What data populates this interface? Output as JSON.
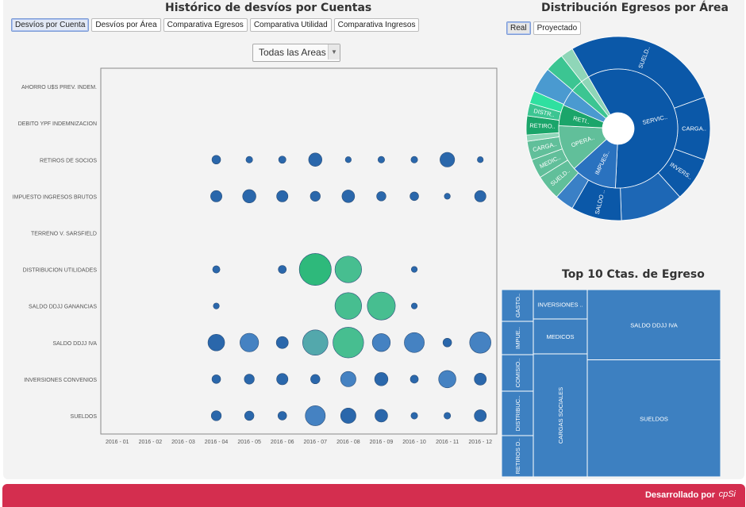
{
  "left_title": "Histórico de desvíos por Cuentas",
  "left_tabs": [
    "Desvíos por Cuenta",
    "Desvíos por Área",
    "Comparativa Egresos",
    "Comparativa Utilidad",
    "Comparativa Ingresos"
  ],
  "area_select": {
    "value": "Todas las Areas"
  },
  "right_title": "Distribución Egresos por Área",
  "right_tabs": [
    "Real",
    "Proyectado"
  ],
  "treemap_title": "Top 10 Ctas. de Egreso",
  "footer": {
    "text": "Desarrollado por",
    "logo": "cpSi"
  },
  "colors": {
    "blue": "#1f5fa6",
    "steel": "#3b7bbf",
    "green": "#23b574",
    "mid_green": "#3dbb8a",
    "teal": "#4aa3a8",
    "footer": "#d42e4f"
  },
  "chart_data": {
    "type": "scatter",
    "title": "Histórico de desvíos por Cuentas",
    "categories": [
      "AHORRO U$S PREV. INDEM.",
      "DEBITO YPF INDEMNIZACION",
      "RETIROS DE SOCIOS",
      "IMPUESTO INGRESOS BRUTOS",
      "TERRENO V. SARSFIELD",
      "DISTRIBUCION UTILIDADES",
      "SALDO DDJJ GANANCIAS",
      "SALDO DDJJ IVA",
      "INVERSIONES CONVENIOS",
      "SUELDOS"
    ],
    "x": [
      "2016 - 01",
      "2016 - 02",
      "2016 - 03",
      "2016 - 04",
      "2016 - 05",
      "2016 - 06",
      "2016 - 07",
      "2016 - 08",
      "2016 - 09",
      "2016 - 10",
      "2016 - 11",
      "2016 - 12"
    ],
    "points": [
      {
        "row": 2,
        "col": 3,
        "size": 1.3,
        "color": "#1f5fa6"
      },
      {
        "row": 2,
        "col": 4,
        "size": 1.0,
        "color": "#1f5fa6"
      },
      {
        "row": 2,
        "col": 5,
        "size": 1.1,
        "color": "#1f5fa6"
      },
      {
        "row": 2,
        "col": 6,
        "size": 2.0,
        "color": "#1f5fa6"
      },
      {
        "row": 2,
        "col": 7,
        "size": 0.9,
        "color": "#1f5fa6"
      },
      {
        "row": 2,
        "col": 8,
        "size": 1.0,
        "color": "#1f5fa6"
      },
      {
        "row": 2,
        "col": 9,
        "size": 1.0,
        "color": "#1f5fa6"
      },
      {
        "row": 2,
        "col": 10,
        "size": 2.2,
        "color": "#1f5fa6"
      },
      {
        "row": 2,
        "col": 11,
        "size": 0.9,
        "color": "#1f5fa6"
      },
      {
        "row": 3,
        "col": 3,
        "size": 1.7,
        "color": "#1f5fa6"
      },
      {
        "row": 3,
        "col": 4,
        "size": 2.0,
        "color": "#1f5fa6"
      },
      {
        "row": 3,
        "col": 5,
        "size": 1.7,
        "color": "#1f5fa6"
      },
      {
        "row": 3,
        "col": 6,
        "size": 1.5,
        "color": "#1f5fa6"
      },
      {
        "row": 3,
        "col": 7,
        "size": 1.9,
        "color": "#1f5fa6"
      },
      {
        "row": 3,
        "col": 8,
        "size": 1.4,
        "color": "#1f5fa6"
      },
      {
        "row": 3,
        "col": 9,
        "size": 1.3,
        "color": "#1f5fa6"
      },
      {
        "row": 3,
        "col": 10,
        "size": 0.9,
        "color": "#1f5fa6"
      },
      {
        "row": 3,
        "col": 11,
        "size": 1.7,
        "color": "#1f5fa6"
      },
      {
        "row": 5,
        "col": 3,
        "size": 1.1,
        "color": "#1f5fa6"
      },
      {
        "row": 5,
        "col": 5,
        "size": 1.2,
        "color": "#1f5fa6"
      },
      {
        "row": 5,
        "col": 6,
        "size": 4.8,
        "color": "#23b574"
      },
      {
        "row": 5,
        "col": 7,
        "size": 4.0,
        "color": "#3dbb8a"
      },
      {
        "row": 5,
        "col": 9,
        "size": 0.9,
        "color": "#1f5fa6"
      },
      {
        "row": 6,
        "col": 3,
        "size": 0.9,
        "color": "#1f5fa6"
      },
      {
        "row": 6,
        "col": 7,
        "size": 4.0,
        "color": "#3dbb8a"
      },
      {
        "row": 6,
        "col": 8,
        "size": 4.2,
        "color": "#3dbb8a"
      },
      {
        "row": 6,
        "col": 9,
        "size": 0.9,
        "color": "#1f5fa6"
      },
      {
        "row": 7,
        "col": 3,
        "size": 2.5,
        "color": "#1f5fa6"
      },
      {
        "row": 7,
        "col": 4,
        "size": 2.8,
        "color": "#3b7bbf"
      },
      {
        "row": 7,
        "col": 5,
        "size": 1.8,
        "color": "#1f5fa6"
      },
      {
        "row": 7,
        "col": 6,
        "size": 3.8,
        "color": "#4aa3a8"
      },
      {
        "row": 7,
        "col": 7,
        "size": 4.6,
        "color": "#3dbb8a"
      },
      {
        "row": 7,
        "col": 8,
        "size": 2.7,
        "color": "#3b7bbf"
      },
      {
        "row": 7,
        "col": 9,
        "size": 3.0,
        "color": "#3b7bbf"
      },
      {
        "row": 7,
        "col": 10,
        "size": 1.3,
        "color": "#1f5fa6"
      },
      {
        "row": 7,
        "col": 11,
        "size": 3.2,
        "color": "#3b7bbf"
      },
      {
        "row": 8,
        "col": 3,
        "size": 1.3,
        "color": "#1f5fa6"
      },
      {
        "row": 8,
        "col": 4,
        "size": 1.5,
        "color": "#1f5fa6"
      },
      {
        "row": 8,
        "col": 5,
        "size": 1.7,
        "color": "#1f5fa6"
      },
      {
        "row": 8,
        "col": 6,
        "size": 1.4,
        "color": "#1f5fa6"
      },
      {
        "row": 8,
        "col": 7,
        "size": 2.3,
        "color": "#3b7bbf"
      },
      {
        "row": 8,
        "col": 8,
        "size": 2.0,
        "color": "#1f5fa6"
      },
      {
        "row": 8,
        "col": 9,
        "size": 1.2,
        "color": "#1f5fa6"
      },
      {
        "row": 8,
        "col": 10,
        "size": 2.6,
        "color": "#3b7bbf"
      },
      {
        "row": 8,
        "col": 11,
        "size": 1.8,
        "color": "#1f5fa6"
      },
      {
        "row": 9,
        "col": 3,
        "size": 1.5,
        "color": "#1f5fa6"
      },
      {
        "row": 9,
        "col": 4,
        "size": 1.4,
        "color": "#1f5fa6"
      },
      {
        "row": 9,
        "col": 5,
        "size": 1.3,
        "color": "#1f5fa6"
      },
      {
        "row": 9,
        "col": 6,
        "size": 3.0,
        "color": "#3b7bbf"
      },
      {
        "row": 9,
        "col": 7,
        "size": 2.3,
        "color": "#1f5fa6"
      },
      {
        "row": 9,
        "col": 8,
        "size": 1.9,
        "color": "#1f5fa6"
      },
      {
        "row": 9,
        "col": 9,
        "size": 1.0,
        "color": "#1f5fa6"
      },
      {
        "row": 9,
        "col": 10,
        "size": 1.0,
        "color": "#1f5fa6"
      },
      {
        "row": 9,
        "col": 11,
        "size": 1.8,
        "color": "#1f5fa6"
      }
    ]
  },
  "sunburst": {
    "type": "pie",
    "start_angle_deg": -30,
    "inner": [
      {
        "label": "SERVIC..",
        "value": 52,
        "color": "#0b58a8"
      },
      {
        "label": "IMPUES..",
        "value": 11,
        "color": "#2a72bf"
      },
      {
        "label": "OPERA..",
        "value": 11,
        "color": "#61bf9a"
      },
      {
        "label": "RETI..",
        "value": 5,
        "color": "#1ba56a"
      },
      {
        "label": "",
        "value": 4,
        "color": "#4a9ad0"
      },
      {
        "label": "",
        "value": 3,
        "color": "#3cc592"
      },
      {
        "label": "",
        "value": 2,
        "color": "#8fd6b8"
      }
    ],
    "outer": [
      {
        "label": "SUELD..",
        "value": 25,
        "color": "#0b58a8"
      },
      {
        "label": "CARGA..",
        "value": 10,
        "color": "#0b58a8"
      },
      {
        "label": "INVERS..",
        "value": 7,
        "color": "#0b58a8"
      },
      {
        "label": "",
        "value": 10,
        "color": "#1d67b5"
      },
      {
        "label": "SALDO ..",
        "value": 8,
        "color": "#0b58a8"
      },
      {
        "label": "",
        "value": 3,
        "color": "#3a80c6"
      },
      {
        "label": "SUELD..",
        "value": 4,
        "color": "#61bf9a"
      },
      {
        "label": "MEDIC..",
        "value": 3,
        "color": "#61bf9a"
      },
      {
        "label": "CARGA..",
        "value": 3,
        "color": "#61bf9a"
      },
      {
        "label": "",
        "value": 1,
        "color": "#8fd6b8"
      },
      {
        "label": "RETIRO..",
        "value": 3,
        "color": "#1ba56a"
      },
      {
        "label": "DISTR..",
        "value": 2,
        "color": "#3cc592"
      },
      {
        "label": "",
        "value": 2,
        "color": "#2fe0a0"
      },
      {
        "label": "",
        "value": 4,
        "color": "#4a9ad0"
      },
      {
        "label": "",
        "value": 3,
        "color": "#3cc592"
      },
      {
        "label": "",
        "value": 2,
        "color": "#8fd6b8"
      }
    ]
  },
  "treemap": {
    "title": "Top 10 Ctas. de Egreso",
    "cells": [
      {
        "label": "GASTO..",
        "value": 3
      },
      {
        "label": "IMPUE..",
        "value": 3
      },
      {
        "label": "COMISIO..",
        "value": 3
      },
      {
        "label": "DISTRIBUC..",
        "value": 3
      },
      {
        "label": "RETIROS D..",
        "value": 3
      },
      {
        "label": "INVERSIONES ..",
        "value": 6
      },
      {
        "label": "MEDICOS",
        "value": 6
      },
      {
        "label": "CARGAS SOCIALES",
        "value": 16
      },
      {
        "label": "SALDO DDJJ IVA",
        "value": 33
      },
      {
        "label": "SUELDOS",
        "value": 55
      }
    ]
  }
}
